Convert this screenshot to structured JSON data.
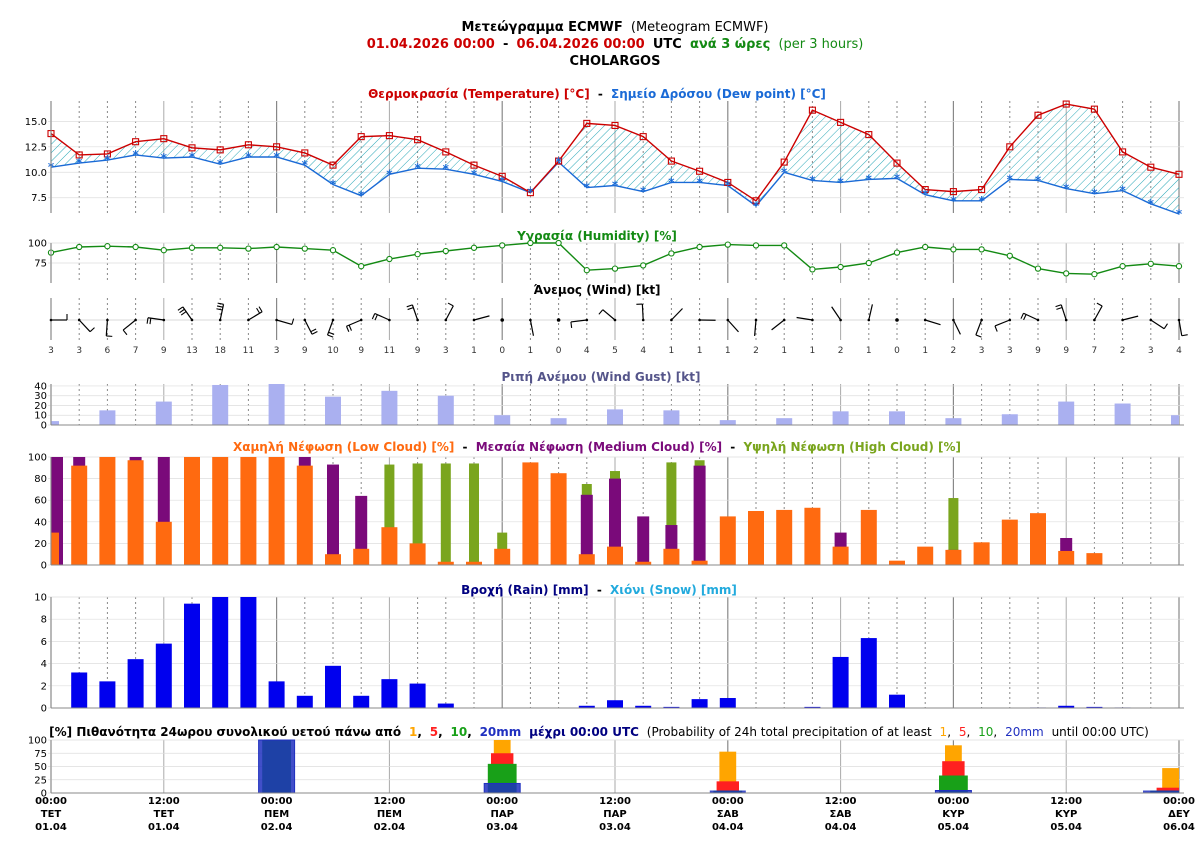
{
  "colors": {
    "temp": "#cc0000",
    "dew": "#1a6ad6",
    "humidity": "#138a13",
    "gust": "#aab0f0",
    "gust_title": "#55558a",
    "low": "#ff6a10",
    "medium": "#7a0a7a",
    "high": "#7aa51e",
    "rain": "#0000ee",
    "rain_title": "#000080",
    "snow": "#22aadd",
    "p1": "#ffa500",
    "p5": "#ff2020",
    "p10": "#18a018",
    "p20": "#2030c0",
    "p_text": "#000080"
  },
  "header": {
    "title_gr": "Μετεώγραμμα ECMWF",
    "title_en": "(Meteogram ECMWF)",
    "date_from": "01.04.2026 00:00",
    "dash": "-",
    "date_to": "06.04.2026 00:00",
    "utc": "UTC",
    "step_gr": "ανά 3 ώρες",
    "step_en": "(per 3 hours)",
    "location": "CHOLARGOS"
  },
  "titles": {
    "temperature": "Θερμοκρασία (Temperature) [°C]",
    "sep": "-",
    "dewpoint": "Σημείο Δρόσου (Dew point) [°C]",
    "humidity": "Υγρασία (Humidity) [%]",
    "wind": "Άνεμος (Wind) [kt]",
    "gust": "Ριπή Ανέμου (Wind Gust) [kt]",
    "low_cloud": "Χαμηλή Νέφωση (Low Cloud) [%]",
    "medium_cloud": "Μεσαία Νέφωση (Medium Cloud) [%]",
    "high_cloud": "Υψηλή Νέφωση (High Cloud) [%]",
    "rain": "Βροχή (Rain) [mm]",
    "snow": "Χιόνι (Snow) [mm]"
  },
  "prob_title": {
    "lead": "[%] Πιθανότητα 24ωρου συνολικού υετού πάνω από",
    "t1": "1",
    "c1": ",",
    "t5": "5",
    "c2": ",",
    "t10": "10",
    "c3": ",",
    "t20": "20mm",
    "until": "μέχρι 00:00 UTC",
    "en_lead": "(Probability of 24h total precipitation of at least",
    "e1": "1",
    "ec1": ",",
    "e5": "5",
    "ec2": ",",
    "e10": "10",
    "ec3": ",",
    "e20": "20mm",
    "en_until": "until 00:00 UTC)"
  },
  "time_labels": [
    {
      "time": "00:00",
      "day": "ΤΕΤ",
      "date": "01.04"
    },
    {
      "time": "12:00",
      "day": "ΤΕΤ",
      "date": "01.04"
    },
    {
      "time": "00:00",
      "day": "ΠΕΜ",
      "date": "02.04"
    },
    {
      "time": "12:00",
      "day": "ΠΕΜ",
      "date": "02.04"
    },
    {
      "time": "00:00",
      "day": "ΠΑΡ",
      "date": "03.04"
    },
    {
      "time": "12:00",
      "day": "ΠΑΡ",
      "date": "03.04"
    },
    {
      "time": "00:00",
      "day": "ΣΑΒ",
      "date": "04.04"
    },
    {
      "time": "12:00",
      "day": "ΣΑΒ",
      "date": "04.04"
    },
    {
      "time": "00:00",
      "day": "ΚΥΡ",
      "date": "05.04"
    },
    {
      "time": "12:00",
      "day": "ΚΥΡ",
      "date": "05.04"
    },
    {
      "time": "00:00",
      "day": "ΔΕΥ",
      "date": "06.04"
    }
  ],
  "chart_data": {
    "type": "meteogram",
    "step_hours": 3,
    "n_steps": 41,
    "temperature": {
      "ylim": [
        6,
        17
      ],
      "ticks": [
        "7.5",
        "10.0",
        "12.5",
        "15.0"
      ],
      "temp": [
        13.8,
        11.7,
        11.8,
        13.0,
        13.3,
        12.4,
        12.2,
        12.7,
        12.5,
        11.9,
        10.7,
        13.5,
        13.6,
        13.2,
        12.0,
        10.7,
        9.6,
        8.0,
        11.1,
        14.8,
        14.6,
        13.5,
        11.1,
        10.1,
        9.0,
        7.2,
        11.0,
        16.1,
        14.9,
        13.7,
        10.9,
        8.3,
        8.1,
        8.3,
        12.5,
        15.6,
        16.7,
        16.2,
        12.0,
        10.5,
        9.8
      ],
      "dew": [
        10.5,
        10.9,
        11.2,
        11.7,
        11.4,
        11.5,
        10.8,
        11.5,
        11.5,
        10.7,
        8.8,
        7.7,
        9.8,
        10.4,
        10.3,
        9.8,
        9.1,
        8.0,
        11.0,
        8.5,
        8.7,
        8.1,
        9.0,
        9.0,
        8.7,
        6.7,
        10.0,
        9.2,
        9.0,
        9.3,
        9.4,
        7.8,
        7.2,
        7.2,
        9.3,
        9.2,
        8.4,
        7.9,
        8.2,
        6.9,
        5.9
      ]
    },
    "humidity": {
      "ylim": [
        50,
        100
      ],
      "ticks": [
        "75",
        "100"
      ],
      "values": [
        88,
        95,
        96,
        95,
        91,
        94,
        94,
        93,
        95,
        93,
        91,
        71,
        80,
        86,
        90,
        94,
        97,
        100,
        100,
        66,
        68,
        72,
        87,
        95,
        98,
        97,
        97,
        67,
        70,
        75,
        88,
        95,
        92,
        92,
        84,
        68,
        62,
        61,
        71,
        74,
        71
      ]
    },
    "wind": {
      "speeds": [
        "3",
        "3",
        "6",
        "7",
        "9",
        "13",
        "18",
        "11",
        "3",
        "9",
        "10",
        "9",
        "11",
        "9",
        "3",
        "1",
        "0",
        "1",
        "0",
        "4",
        "5",
        "4",
        "1",
        "1",
        "1",
        "2",
        "1",
        "1",
        "2",
        "1",
        "0",
        "1",
        "2",
        "3",
        "3",
        "9",
        "9",
        "7",
        "2",
        "3",
        "4"
      ]
    },
    "gust": {
      "ylim": [
        0,
        42
      ],
      "ticks": [
        "0",
        "10",
        "20",
        "30",
        "40"
      ],
      "values": [
        4,
        null,
        15,
        null,
        24,
        null,
        41,
        null,
        42,
        null,
        29,
        null,
        35,
        null,
        30,
        null,
        10,
        null,
        7,
        null,
        16,
        null,
        15,
        null,
        5,
        null,
        7,
        null,
        14,
        null,
        14,
        null,
        7,
        null,
        11,
        null,
        24,
        null,
        22,
        null,
        10
      ]
    },
    "clouds": {
      "ylim": [
        0,
        100
      ],
      "ticks": [
        "0",
        "20",
        "40",
        "60",
        "80",
        "100"
      ],
      "low": [
        30,
        92,
        100,
        97,
        40,
        100,
        100,
        100,
        100,
        92,
        10,
        15,
        35,
        20,
        3,
        3,
        15,
        95,
        85,
        10,
        17,
        3,
        15,
        4,
        45,
        50,
        51,
        53,
        17,
        51,
        4,
        17,
        14,
        21,
        42,
        48,
        13,
        11,
        null,
        null,
        null
      ],
      "medium": [
        100,
        100,
        100,
        100,
        100,
        100,
        100,
        100,
        100,
        100,
        93,
        64,
        null,
        null,
        null,
        null,
        null,
        null,
        null,
        65,
        80,
        45,
        37,
        92,
        null,
        null,
        null,
        null,
        30,
        null,
        null,
        null,
        14,
        null,
        null,
        null,
        25,
        null,
        null,
        null,
        null
      ],
      "high": [
        null,
        null,
        null,
        null,
        null,
        null,
        null,
        null,
        null,
        null,
        null,
        null,
        93,
        94,
        94,
        94,
        30,
        null,
        null,
        75,
        87,
        null,
        95,
        97,
        null,
        null,
        null,
        null,
        null,
        null,
        null,
        null,
        62,
        null,
        null,
        null,
        null,
        null,
        null,
        null,
        null
      ]
    },
    "rain": {
      "ylim": [
        0,
        10
      ],
      "ticks": [
        "0",
        "2",
        "4",
        "6",
        "8",
        "10"
      ],
      "values": [
        null,
        3.2,
        2.4,
        4.4,
        5.8,
        9.4,
        10,
        10,
        2.4,
        1.1,
        3.8,
        1.1,
        2.6,
        2.2,
        0.4,
        null,
        null,
        null,
        null,
        0.2,
        0.7,
        0.2,
        0.1,
        0.8,
        0.9,
        null,
        null,
        0.1,
        4.6,
        6.3,
        1.2,
        null,
        null,
        null,
        null,
        0.05,
        0.2,
        0.1,
        0.05,
        null,
        null
      ],
      "snow": []
    },
    "probability": {
      "ylim": [
        0,
        100
      ],
      "ticks": [
        "0",
        "25",
        "50",
        "75",
        "100"
      ],
      "days": [
        {
          "index": 8,
          "p1": 100,
          "p5": 100,
          "p10": 100,
          "p20": 100
        },
        {
          "index": 16,
          "p1": 100,
          "p5": 75,
          "p10": 55,
          "p20": 18
        },
        {
          "index": 24,
          "p1": 78,
          "p5": 22,
          "p10": 3,
          "p20": 0
        },
        {
          "index": 32,
          "p1": 90,
          "p5": 60,
          "p10": 33,
          "p20": 2
        },
        {
          "index": 40,
          "p1": 47,
          "p5": 10,
          "p10": 4,
          "p20": 0
        }
      ]
    }
  }
}
